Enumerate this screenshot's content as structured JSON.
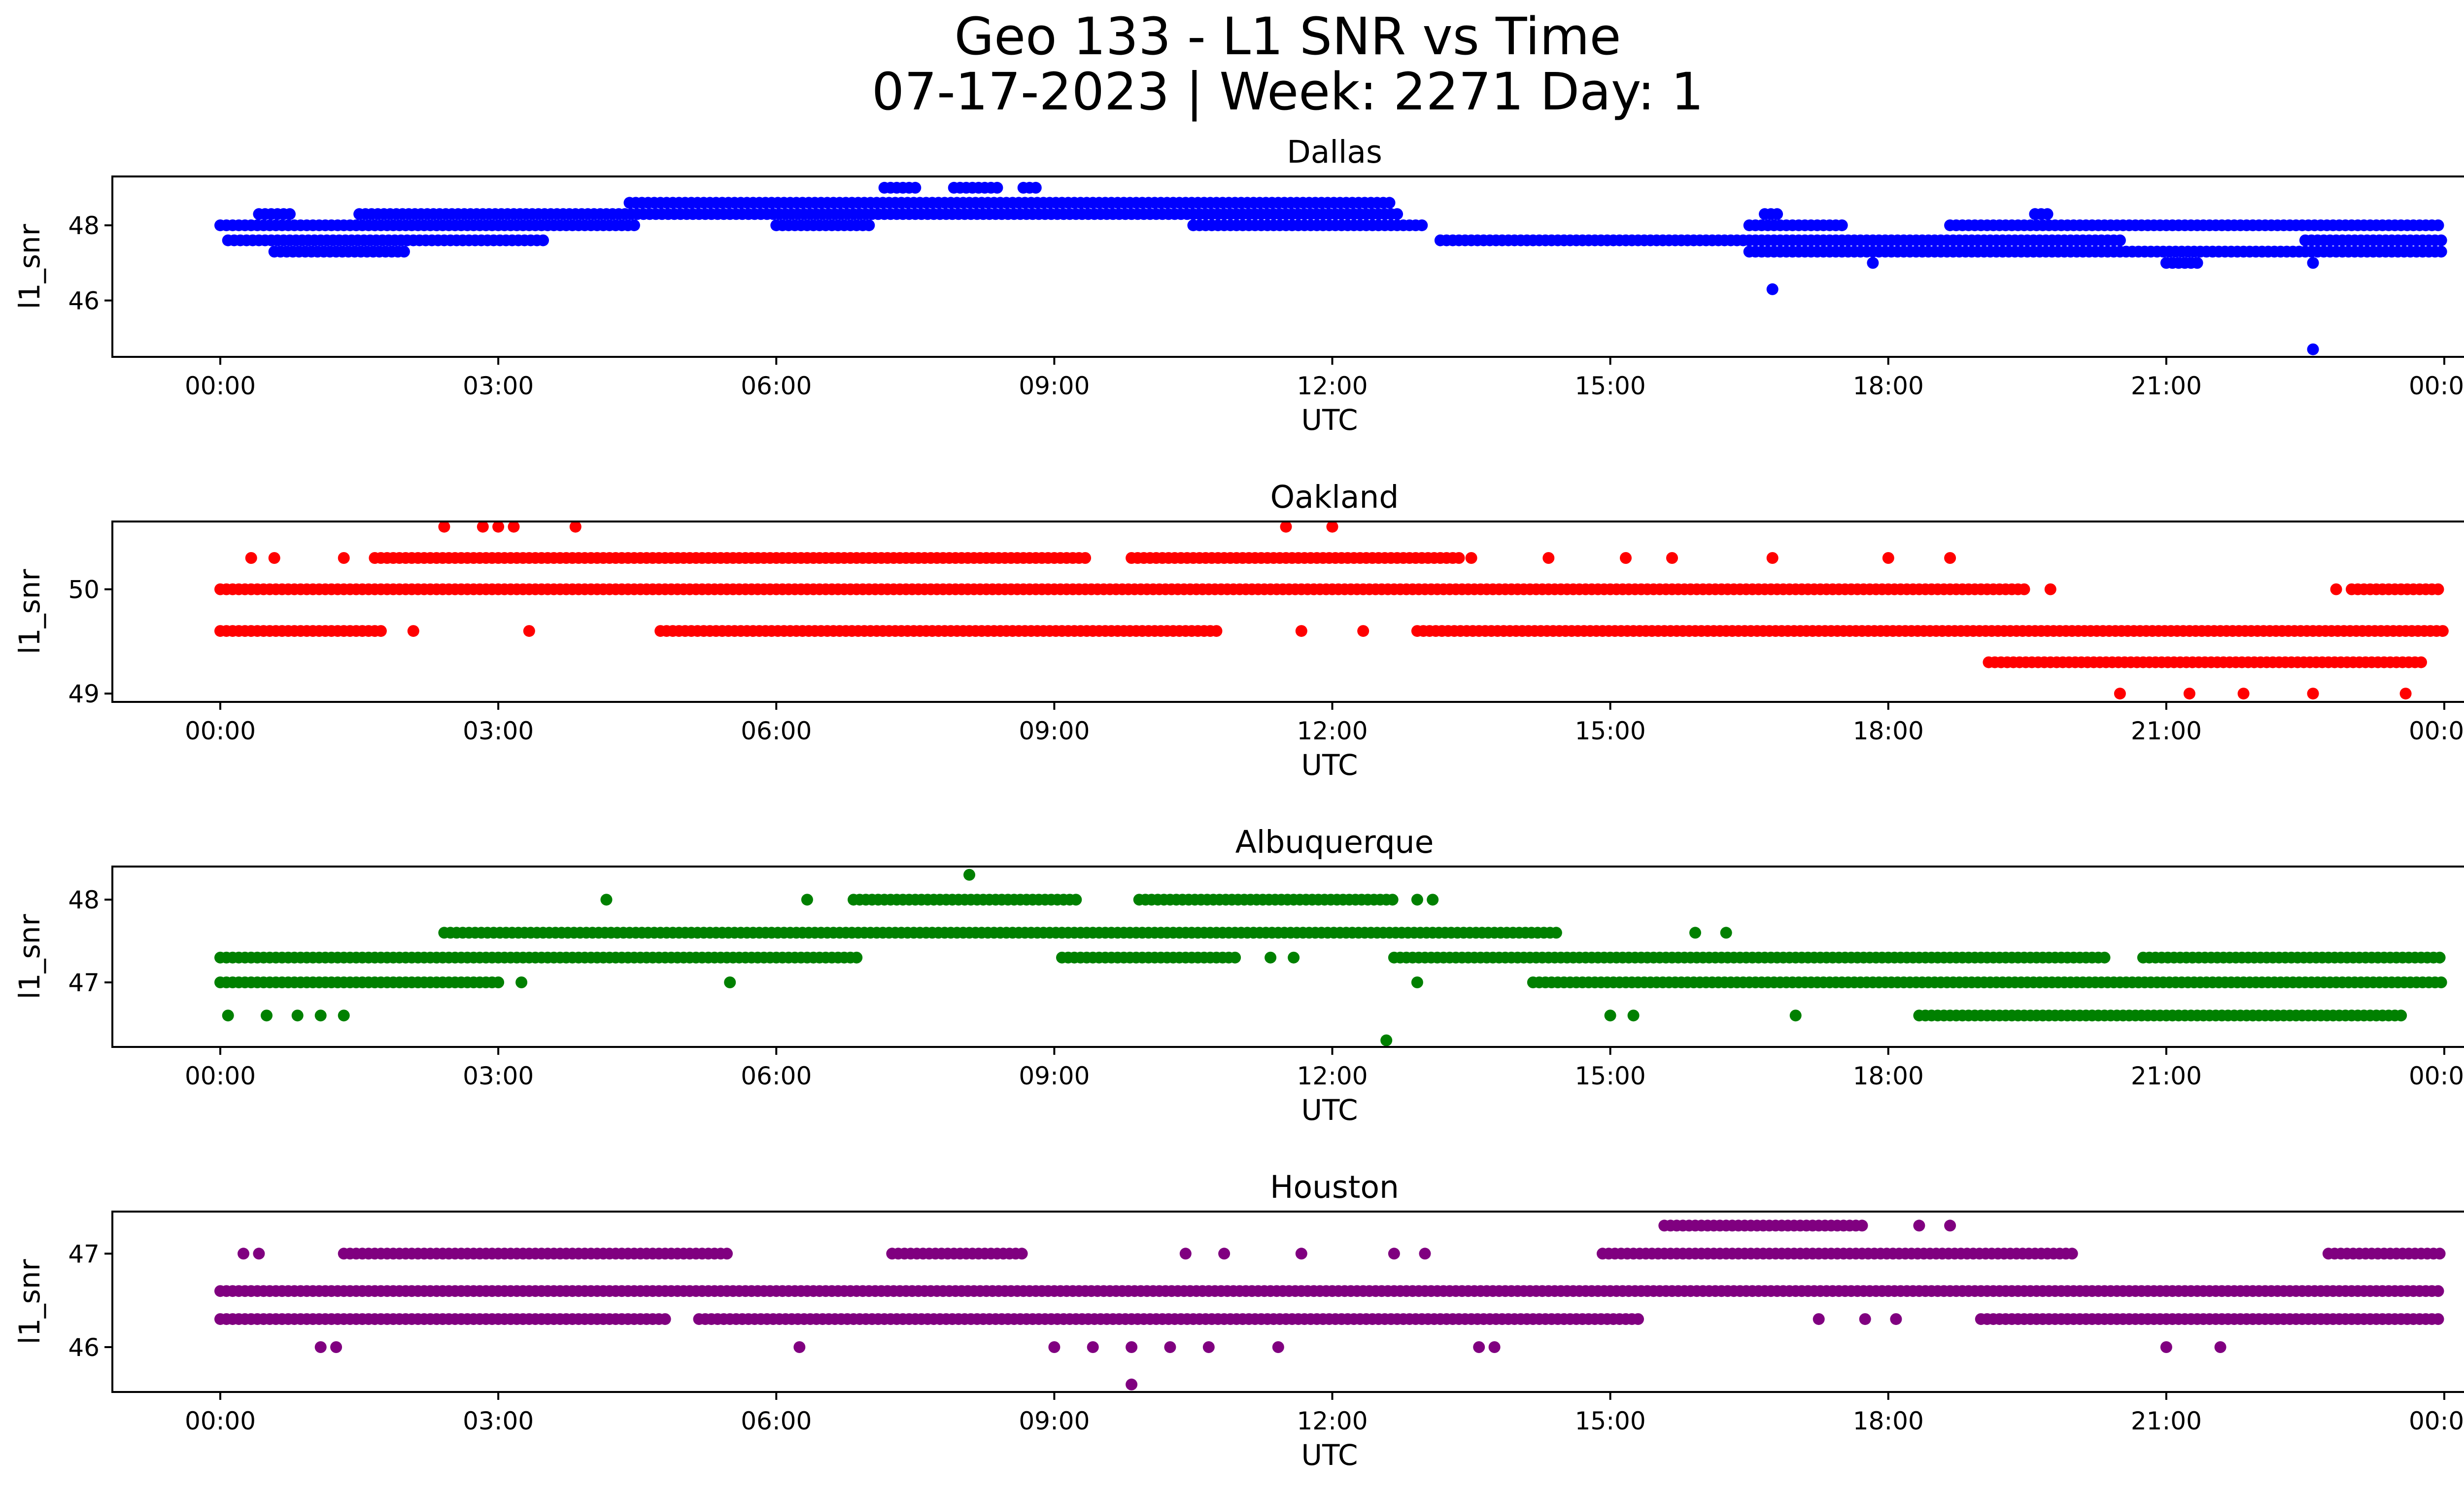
{
  "figure": {
    "title_line1": "Geo 133 - L1 SNR vs Time",
    "title_line2": "07-17-2023 | Week: 2271 Day: 1"
  },
  "chart_data": [
    {
      "type": "scatter",
      "title": "Dallas",
      "xlabel": "UTC",
      "ylabel": "l1_snr",
      "color": "#0000ff",
      "xlim": [
        "00:00",
        "24:00"
      ],
      "ylim": [
        44.5,
        49.3
      ],
      "x_ticks": [
        "00:00",
        "03:00",
        "06:00",
        "09:00",
        "12:00",
        "15:00",
        "18:00",
        "21:00",
        "00:00"
      ],
      "y_ticks": [
        46,
        48
      ],
      "bands": [
        {
          "y": 48.0,
          "x_ranges": [
            [
              "00:00",
              "04:30"
            ],
            [
              "06:00",
              "07:00"
            ],
            [
              "10:30",
              "13:00"
            ],
            [
              "16:30",
              "17:30"
            ],
            [
              "18:40",
              "23:59"
            ]
          ]
        },
        {
          "y": 47.6,
          "x_ranges": [
            [
              "00:05",
              "03:30"
            ],
            [
              "13:10",
              "20:30"
            ],
            [
              "22:30",
              "23:59"
            ]
          ]
        },
        {
          "y": 48.3,
          "x_ranges": [
            [
              "00:25",
              "00:45"
            ],
            [
              "01:30",
              "12:45"
            ],
            [
              "16:40",
              "16:50"
            ],
            [
              "19:35",
              "19:45"
            ]
          ]
        },
        {
          "y": 48.6,
          "x_ranges": [
            [
              "04:25",
              "12:40"
            ]
          ]
        },
        {
          "y": 47.3,
          "x_ranges": [
            [
              "00:35",
              "02:00"
            ],
            [
              "16:30",
              "23:59"
            ]
          ]
        },
        {
          "y": 49.0,
          "x_ranges": [
            [
              "07:10",
              "07:30"
            ],
            [
              "07:55",
              "08:25"
            ],
            [
              "08:40",
              "08:50"
            ]
          ]
        },
        {
          "y": 47.0,
          "x_ranges": [
            [
              "21:00",
              "21:20"
            ]
          ]
        }
      ],
      "outliers": [
        {
          "x": "16:45",
          "y": 46.3
        },
        {
          "x": "22:35",
          "y": 44.7
        },
        {
          "x": "22:35",
          "y": 47.0
        },
        {
          "x": "17:50",
          "y": 47.0
        },
        {
          "x": "21:40",
          "y": 48.0
        },
        {
          "x": "19:35",
          "y": 48.3
        }
      ]
    },
    {
      "type": "scatter",
      "title": "Oakland",
      "xlabel": "UTC",
      "ylabel": "l1_snr",
      "color": "#ff0000",
      "xlim": [
        "00:00",
        "24:00"
      ],
      "ylim": [
        48.92,
        50.65
      ],
      "x_ticks": [
        "00:00",
        "03:00",
        "06:00",
        "09:00",
        "12:00",
        "15:00",
        "18:00",
        "21:00",
        "00:00"
      ],
      "y_ticks": [
        49,
        50
      ],
      "bands": [
        {
          "y": 50.0,
          "x_ranges": [
            [
              "00:00",
              "19:30"
            ],
            [
              "23:00",
              "23:59"
            ]
          ]
        },
        {
          "y": 49.6,
          "x_ranges": [
            [
              "00:00",
              "01:45"
            ],
            [
              "04:45",
              "10:45"
            ],
            [
              "12:55",
              "23:59"
            ]
          ]
        },
        {
          "y": 50.3,
          "x_ranges": [
            [
              "01:40",
              "09:20"
            ],
            [
              "09:50",
              "13:25"
            ]
          ]
        },
        {
          "y": 49.3,
          "x_ranges": [
            [
              "19:05",
              "23:45"
            ]
          ]
        }
      ],
      "outliers": [
        {
          "x": "02:25",
          "y": 50.6
        },
        {
          "x": "02:50",
          "y": 50.6
        },
        {
          "x": "03:00",
          "y": 50.6
        },
        {
          "x": "03:10",
          "y": 50.6
        },
        {
          "x": "03:50",
          "y": 50.6
        },
        {
          "x": "11:30",
          "y": 50.6
        },
        {
          "x": "12:00",
          "y": 50.6
        },
        {
          "x": "00:20",
          "y": 50.3
        },
        {
          "x": "00:35",
          "y": 50.3
        },
        {
          "x": "01:20",
          "y": 50.3
        },
        {
          "x": "13:30",
          "y": 50.3
        },
        {
          "x": "14:20",
          "y": 50.3
        },
        {
          "x": "15:10",
          "y": 50.3
        },
        {
          "x": "15:40",
          "y": 50.3
        },
        {
          "x": "16:45",
          "y": 50.3
        },
        {
          "x": "18:00",
          "y": 50.3
        },
        {
          "x": "18:40",
          "y": 50.3
        },
        {
          "x": "02:05",
          "y": 49.6
        },
        {
          "x": "03:20",
          "y": 49.6
        },
        {
          "x": "11:40",
          "y": 49.6
        },
        {
          "x": "12:20",
          "y": 49.6
        },
        {
          "x": "19:45",
          "y": 50.0
        },
        {
          "x": "22:50",
          "y": 50.0
        },
        {
          "x": "20:30",
          "y": 49.0
        },
        {
          "x": "21:15",
          "y": 49.0
        },
        {
          "x": "21:50",
          "y": 49.0
        },
        {
          "x": "22:35",
          "y": 49.0
        },
        {
          "x": "23:35",
          "y": 49.0
        }
      ]
    },
    {
      "type": "scatter",
      "title": "Albuquerque",
      "xlabel": "UTC",
      "ylabel": "l1_snr",
      "color": "#008000",
      "xlim": [
        "00:00",
        "24:00"
      ],
      "ylim": [
        46.22,
        48.4
      ],
      "x_ticks": [
        "00:00",
        "03:00",
        "06:00",
        "09:00",
        "12:00",
        "15:00",
        "18:00",
        "21:00",
        "00:00"
      ],
      "y_ticks": [
        47,
        48
      ],
      "bands": [
        {
          "y": 47.3,
          "x_ranges": [
            [
              "00:00",
              "06:55"
            ],
            [
              "09:05",
              "11:00"
            ],
            [
              "12:40",
              "20:20"
            ],
            [
              "20:45",
              "23:59"
            ]
          ]
        },
        {
          "y": 47.0,
          "x_ranges": [
            [
              "00:00",
              "03:00"
            ],
            [
              "14:10",
              "23:59"
            ]
          ]
        },
        {
          "y": 47.6,
          "x_ranges": [
            [
              "02:25",
              "14:25"
            ]
          ]
        },
        {
          "y": 48.0,
          "x_ranges": [
            [
              "06:50",
              "09:15"
            ],
            [
              "09:55",
              "12:40"
            ]
          ]
        },
        {
          "y": 46.6,
          "x_ranges": [
            [
              "18:20",
              "23:35"
            ]
          ]
        }
      ],
      "outliers": [
        {
          "x": "08:05",
          "y": 48.3
        },
        {
          "x": "04:10",
          "y": 48.0
        },
        {
          "x": "06:20",
          "y": 48.0
        },
        {
          "x": "12:55",
          "y": 48.0
        },
        {
          "x": "13:05",
          "y": 48.0
        },
        {
          "x": "00:05",
          "y": 46.6
        },
        {
          "x": "00:30",
          "y": 46.6
        },
        {
          "x": "00:50",
          "y": 46.6
        },
        {
          "x": "01:05",
          "y": 46.6
        },
        {
          "x": "01:20",
          "y": 46.6
        },
        {
          "x": "05:30",
          "y": 47.0
        },
        {
          "x": "03:15",
          "y": 47.0
        },
        {
          "x": "12:55",
          "y": 47.0
        },
        {
          "x": "12:35",
          "y": 46.3
        },
        {
          "x": "15:00",
          "y": 46.6
        },
        {
          "x": "15:15",
          "y": 46.6
        },
        {
          "x": "17:00",
          "y": 46.6
        },
        {
          "x": "15:55",
          "y": 47.6
        },
        {
          "x": "16:15",
          "y": 47.6
        },
        {
          "x": "11:20",
          "y": 47.3
        },
        {
          "x": "11:35",
          "y": 47.3
        }
      ]
    },
    {
      "type": "scatter",
      "title": "Houston",
      "xlabel": "UTC",
      "ylabel": "l1_snr",
      "color": "#800080",
      "xlim": [
        "00:00",
        "24:00"
      ],
      "ylim": [
        45.52,
        47.45
      ],
      "x_ticks": [
        "00:00",
        "03:00",
        "06:00",
        "09:00",
        "12:00",
        "15:00",
        "18:00",
        "21:00",
        "00:00"
      ],
      "y_ticks": [
        46,
        47
      ],
      "bands": [
        {
          "y": 46.6,
          "x_ranges": [
            [
              "00:00",
              "23:59"
            ]
          ]
        },
        {
          "y": 46.3,
          "x_ranges": [
            [
              "00:00",
              "04:50"
            ],
            [
              "05:10",
              "15:20"
            ],
            [
              "19:00",
              "23:59"
            ]
          ]
        },
        {
          "y": 47.0,
          "x_ranges": [
            [
              "01:20",
              "05:30"
            ],
            [
              "07:15",
              "08:40"
            ],
            [
              "14:55",
              "20:00"
            ],
            [
              "22:45",
              "23:59"
            ]
          ]
        },
        {
          "y": 47.3,
          "x_ranges": [
            [
              "15:35",
              "17:45"
            ]
          ]
        }
      ],
      "outliers": [
        {
          "x": "00:15",
          "y": 47.0
        },
        {
          "x": "00:25",
          "y": 47.0
        },
        {
          "x": "01:05",
          "y": 46.0
        },
        {
          "x": "01:15",
          "y": 46.0
        },
        {
          "x": "06:15",
          "y": 46.0
        },
        {
          "x": "09:00",
          "y": 46.0
        },
        {
          "x": "09:25",
          "y": 46.0
        },
        {
          "x": "09:50",
          "y": 46.0
        },
        {
          "x": "10:15",
          "y": 46.0
        },
        {
          "x": "10:40",
          "y": 46.0
        },
        {
          "x": "11:25",
          "y": 46.0
        },
        {
          "x": "13:35",
          "y": 46.0
        },
        {
          "x": "13:45",
          "y": 46.0
        },
        {
          "x": "09:50",
          "y": 45.6
        },
        {
          "x": "21:00",
          "y": 46.0
        },
        {
          "x": "21:35",
          "y": 46.0
        },
        {
          "x": "17:15",
          "y": 46.3
        },
        {
          "x": "17:45",
          "y": 46.3
        },
        {
          "x": "18:05",
          "y": 46.3
        },
        {
          "x": "18:40",
          "y": 47.3
        },
        {
          "x": "18:20",
          "y": 47.3
        },
        {
          "x": "10:25",
          "y": 47.0
        },
        {
          "x": "10:50",
          "y": 47.0
        },
        {
          "x": "11:40",
          "y": 47.0
        },
        {
          "x": "12:40",
          "y": 47.0
        },
        {
          "x": "13:00",
          "y": 47.0
        }
      ]
    }
  ]
}
